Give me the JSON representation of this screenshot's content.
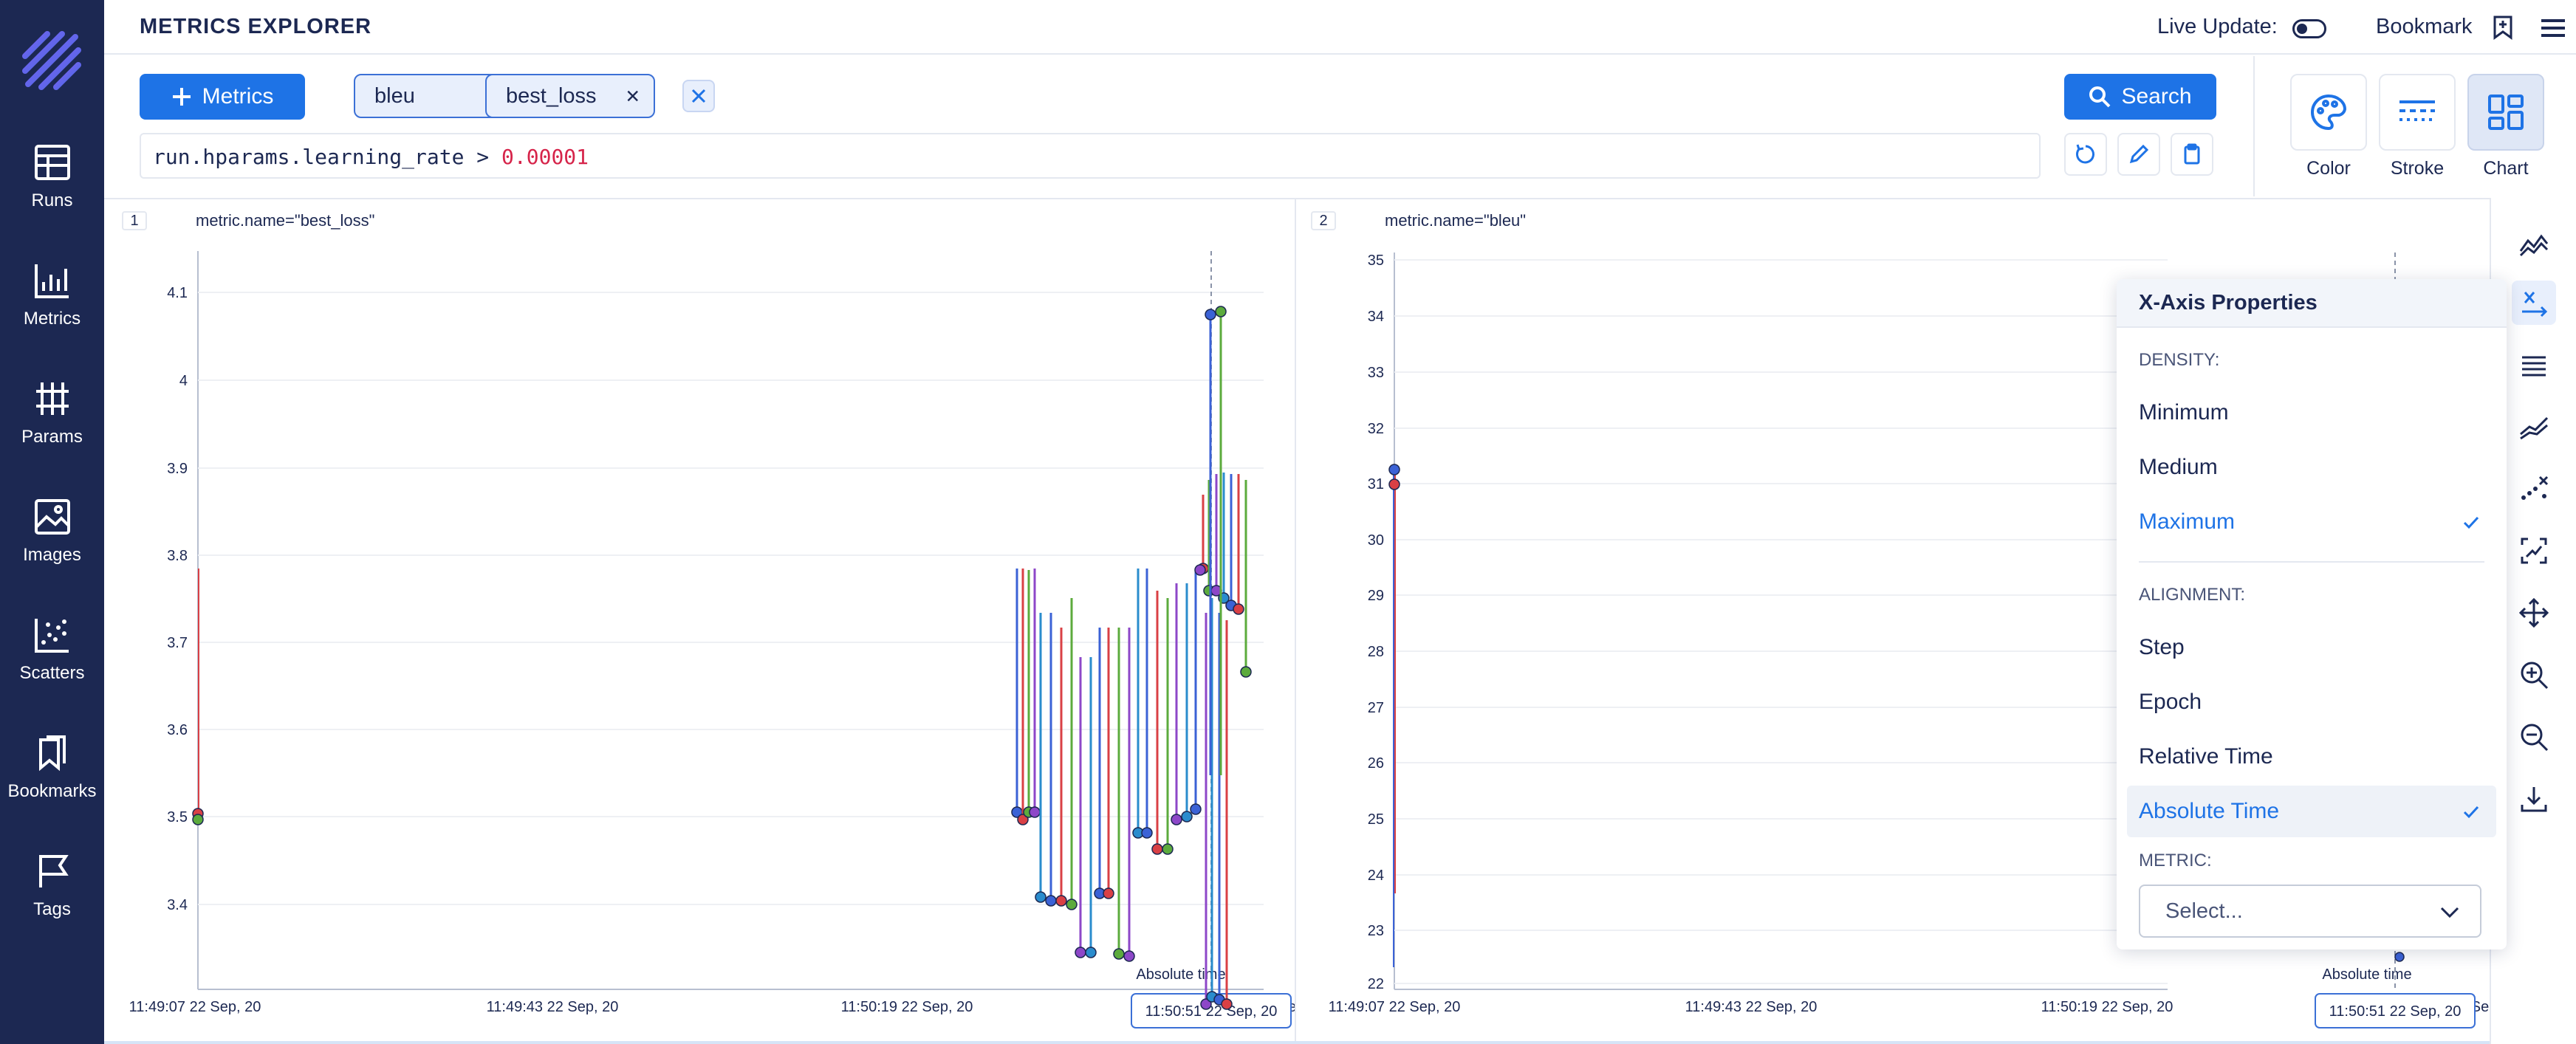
{
  "header": {
    "title": "METRICS EXPLORER",
    "live_update_label": "Live Update:",
    "bookmark_label": "Bookmark"
  },
  "sidebar": {
    "items": [
      {
        "label": "Runs",
        "icon": "table-icon"
      },
      {
        "label": "Metrics",
        "icon": "chart-icon"
      },
      {
        "label": "Params",
        "icon": "params-icon"
      },
      {
        "label": "Images",
        "icon": "image-icon"
      },
      {
        "label": "Scatters",
        "icon": "scatter-icon"
      },
      {
        "label": "Bookmarks",
        "icon": "bookmark-icon"
      },
      {
        "label": "Tags",
        "icon": "flag-icon"
      }
    ]
  },
  "toolbar": {
    "metrics_button": "Metrics",
    "chips": [
      "bleu",
      "best_loss"
    ],
    "query_prefix": "run.hparams.learning_rate > ",
    "query_value": "0.00001",
    "search_button": "Search"
  },
  "controls": {
    "color": "Color",
    "stroke": "Stroke",
    "chart": "Chart"
  },
  "colors": {
    "sidebar": "#1c2852",
    "accent": "#1e73e6",
    "series": [
      "#3b62d6",
      "#d94045",
      "#5cab3d",
      "#8d47c8",
      "#2a8ccd"
    ]
  },
  "charts": [
    {
      "index": "1",
      "title": "metric.name=\"best_loss\"",
      "y_ticks": [
        "4.1",
        "4",
        "3.9",
        "3.8",
        "3.7",
        "3.6",
        "3.5",
        "3.4"
      ],
      "x_ticks": [
        "11:49:07 22 Sep, 20",
        "11:49:43 22 Sep, 20",
        "11:50:19 22 Sep, 20",
        "22 Se"
      ],
      "x_label": "Absolute time",
      "cursor_label": "11:50:51 22 Sep, 20"
    },
    {
      "index": "2",
      "title": "metric.name=\"bleu\"",
      "y_ticks": [
        "35",
        "34",
        "33",
        "32",
        "31",
        "30",
        "29",
        "28",
        "27",
        "26",
        "25",
        "24",
        "23",
        "22"
      ],
      "x_ticks": [
        "11:49:07 22 Sep, 20",
        "11:49:43 22 Sep, 20",
        "11:50:19 22 Sep, 20",
        "22 Se"
      ],
      "x_label": "Absolute time",
      "cursor_label": "11:50:51 22 Sep, 20"
    }
  ],
  "popover": {
    "title": "X-Axis Properties",
    "density_label": "DENSITY:",
    "density": [
      "Minimum",
      "Medium",
      "Maximum"
    ],
    "density_selected": "Maximum",
    "alignment_label": "ALIGNMENT:",
    "alignment": [
      "Step",
      "Epoch",
      "Relative Time",
      "Absolute Time"
    ],
    "alignment_selected": "Absolute Time",
    "metric_label": "METRIC:",
    "metric_placeholder": "Select..."
  }
}
